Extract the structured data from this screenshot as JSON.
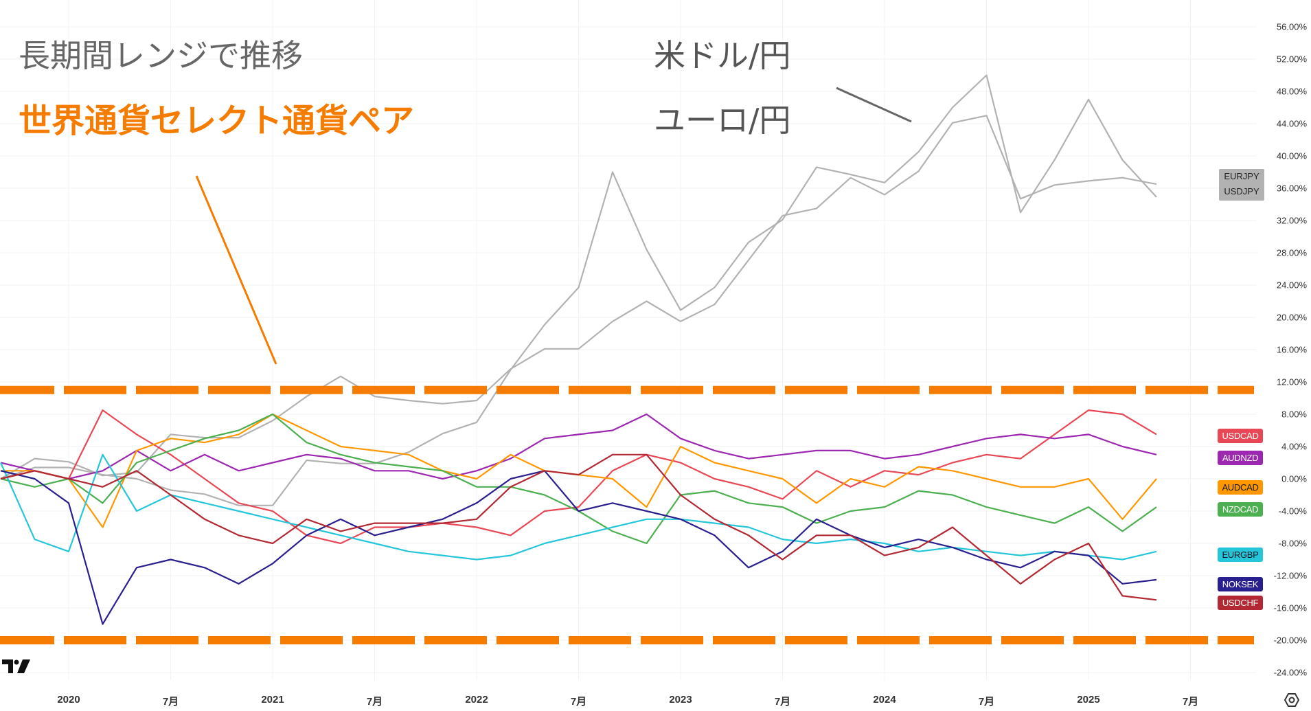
{
  "annotations": {
    "range_text": "長期間レンジで推移",
    "select_pairs_text": "世界通貨セレクト通貨ペア",
    "usdjpy_text": "米ドル/円",
    "eurjpy_text": "ユーロ/円"
  },
  "colors": {
    "range_band": "#f57c00",
    "annotation_orange": "#f57c00",
    "annotation_gray": "#666666",
    "grid": "#f3f3f3"
  },
  "chart_data": {
    "type": "line",
    "ylabel_format": "percent",
    "ylim": [
      -24,
      56
    ],
    "grid": true,
    "legend": "right-axis badges",
    "y_ticks": [
      "56.00%",
      "52.00%",
      "48.00%",
      "44.00%",
      "40.00%",
      "36.00%",
      "32.00%",
      "28.00%",
      "24.00%",
      "20.00%",
      "16.00%",
      "12.00%",
      "8.00%",
      "4.00%",
      "0.00%",
      "-4.00%",
      "-8.00%",
      "-12.00%",
      "-16.00%",
      "-20.00%",
      "-24.00%"
    ],
    "y_tick_values": [
      56,
      52,
      48,
      44,
      40,
      36,
      32,
      28,
      24,
      20,
      16,
      12,
      8,
      4,
      0,
      -4,
      -8,
      -12,
      -16,
      -20,
      -24
    ],
    "x_ticks": [
      {
        "date": "2020-01",
        "label": "2020"
      },
      {
        "date": "2020-07",
        "label": "7月"
      },
      {
        "date": "2021-01",
        "label": "2021"
      },
      {
        "date": "2021-07",
        "label": "7月"
      },
      {
        "date": "2022-01",
        "label": "2022"
      },
      {
        "date": "2022-07",
        "label": "7月"
      },
      {
        "date": "2023-01",
        "label": "2023"
      },
      {
        "date": "2023-07",
        "label": "7月"
      },
      {
        "date": "2024-01",
        "label": "2024"
      },
      {
        "date": "2024-07",
        "label": "7月"
      },
      {
        "date": "2025-01",
        "label": "2025"
      },
      {
        "date": "2025-07",
        "label": "7月"
      }
    ],
    "range_band": {
      "upper": 11,
      "lower": -20
    },
    "dates": [
      "2019-09",
      "2019-11",
      "2020-01",
      "2020-03",
      "2020-05",
      "2020-07",
      "2020-09",
      "2020-11",
      "2021-01",
      "2021-03",
      "2021-05",
      "2021-07",
      "2021-09",
      "2021-11",
      "2022-01",
      "2022-03",
      "2022-05",
      "2022-07",
      "2022-09",
      "2022-11",
      "2023-01",
      "2023-03",
      "2023-05",
      "2023-07",
      "2023-09",
      "2023-11",
      "2024-01",
      "2024-03",
      "2024-05",
      "2024-07",
      "2024-09",
      "2024-11",
      "2025-01",
      "2025-03",
      "2025-05"
    ],
    "series": [
      {
        "name": "USDJPY",
        "color": "#b2b2b2",
        "text_color": "#222222",
        "values": [
          0,
          1.4,
          1.4,
          0.5,
          0,
          -1.4,
          -1.9,
          -3.3,
          -3.3,
          2.3,
          1.9,
          1.9,
          3.3,
          5.6,
          7.0,
          13.5,
          19.1,
          23.7,
          38.0,
          28.4,
          20.9,
          23.7,
          29.3,
          32.1,
          38.6,
          37.7,
          36.7,
          40.5,
          46.0,
          50.0,
          33.0,
          39.5,
          47.0,
          39.5,
          34.9
        ]
      },
      {
        "name": "EURJPY",
        "color": "#b2b2b2",
        "text_color": "#222222",
        "values": [
          0,
          2.5,
          2.1,
          0.4,
          0.8,
          5.5,
          5.1,
          5.1,
          7.2,
          10.2,
          12.7,
          10.2,
          9.7,
          9.3,
          9.7,
          13.6,
          16.1,
          16.1,
          19.5,
          22.0,
          19.5,
          21.6,
          27.1,
          32.6,
          33.5,
          37.3,
          35.2,
          38.1,
          44.1,
          45.0,
          34.7,
          36.4,
          36.9,
          37.3,
          36.5
        ]
      },
      {
        "name": "USDCAD",
        "color": "#e84856",
        "text_color": "#ffffff",
        "values": [
          0,
          1,
          0,
          8.5,
          5.5,
          3,
          0,
          -3,
          -4,
          -7,
          -8,
          -6,
          -6,
          -5.5,
          -6,
          -7,
          -4,
          -3.5,
          1,
          3,
          2,
          0,
          -1,
          -2.5,
          1,
          -1,
          1,
          0.5,
          2,
          3,
          2.5,
          5.5,
          8.5,
          8,
          5.5
        ]
      },
      {
        "name": "AUDNZD",
        "color": "#9c27b0",
        "text_color": "#ffffff",
        "values": [
          2,
          1,
          0,
          1,
          3.5,
          1,
          3,
          1,
          2,
          3,
          2.5,
          1,
          1,
          0,
          1,
          2.5,
          5,
          5.5,
          6,
          8,
          5,
          3.5,
          2.5,
          3,
          3.5,
          3.5,
          2.5,
          3,
          4,
          5,
          5.5,
          5,
          5.5,
          4,
          3
        ]
      },
      {
        "name": "AUDCAD",
        "color": "#ff9800",
        "text_color": "#131722",
        "values": [
          1,
          1,
          0,
          -6,
          3.5,
          5,
          4.5,
          5.5,
          8,
          6,
          4,
          3.5,
          3,
          1,
          0,
          3,
          1,
          0.5,
          0,
          -3.5,
          4,
          2,
          1,
          0,
          -3,
          0,
          -1,
          1.5,
          1,
          0,
          -1,
          -1,
          0,
          -5,
          0
        ]
      },
      {
        "name": "NZDCAD",
        "color": "#4caf50",
        "text_color": "#ffffff",
        "values": [
          0,
          -1,
          0,
          -3,
          2,
          3.5,
          5,
          6,
          8,
          4.5,
          3,
          2,
          1.5,
          1,
          -1,
          -1,
          -2,
          -4,
          -6.5,
          -8,
          -2,
          -1.5,
          -3,
          -3.5,
          -5.5,
          -4,
          -3.5,
          -1.5,
          -2,
          -3.5,
          -4.5,
          -5.5,
          -3.5,
          -6.5,
          -3.5
        ]
      },
      {
        "name": "EURGBP",
        "color": "#26c6da",
        "text_color": "#131722",
        "values": [
          2,
          -7.5,
          -9,
          3,
          -4,
          -2,
          -3,
          -4,
          -5,
          -6,
          -7,
          -8,
          -9,
          -9.5,
          -10,
          -9.5,
          -8,
          -7,
          -6,
          -5,
          -5,
          -5.5,
          -6,
          -7.5,
          -8,
          -7.5,
          -8,
          -9,
          -8.5,
          -9,
          -9.5,
          -9,
          -9.5,
          -10,
          -9
        ]
      },
      {
        "name": "NOKSEK",
        "color": "#2a1f8f",
        "text_color": "#ffffff",
        "values": [
          1,
          0,
          -3,
          -18,
          -11,
          -10,
          -11,
          -13,
          -10.5,
          -7,
          -5,
          -7,
          -6,
          -5,
          -3,
          0,
          1,
          -4,
          -3,
          -4,
          -5,
          -7,
          -11,
          -9,
          -5,
          -7,
          -8.5,
          -7.5,
          -8.5,
          -10,
          -11,
          -9,
          -9.5,
          -13,
          -12.5
        ]
      },
      {
        "name": "USDCHF",
        "color": "#b22833",
        "text_color": "#ffffff",
        "values": [
          0,
          1,
          0,
          -1,
          1,
          -2,
          -5,
          -7,
          -8,
          -5,
          -6.5,
          -5.5,
          -5.5,
          -5.5,
          -5,
          -1,
          1,
          0.5,
          3,
          3,
          -2,
          -5,
          -7,
          -10,
          -7,
          -7,
          -9.5,
          -8.5,
          -6,
          -9.5,
          -13,
          -10,
          -8,
          -14.5,
          -15
        ]
      }
    ]
  },
  "badges": {
    "jpy_top": "EURJPY",
    "jpy_bottom": "USDJPY",
    "usdcad": "USDCAD",
    "audnzd": "AUDNZD",
    "audcad": "AUDCAD",
    "nzdcad": "NZDCAD",
    "eurgbp": "EURGBP",
    "noksek": "NOKSEK",
    "usdchf": "USDCHF"
  },
  "icons": {
    "logo": "tradingview-logo",
    "settings": "settings-icon"
  }
}
